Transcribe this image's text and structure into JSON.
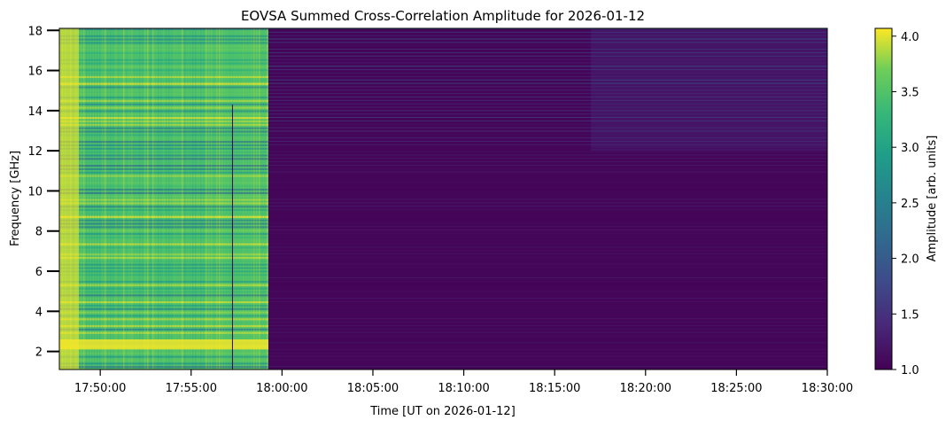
{
  "chart_data": {
    "type": "heatmap",
    "title": "EOVSA Summed Cross-Correlation Amplitude for 2026-01-12",
    "xlabel": "Time [UT on 2026-01-12]",
    "ylabel": "Frequency [GHz]",
    "colorbar_label": "Amplitude [arb. units]",
    "colormap": "viridis",
    "colors": {
      "viridis_low": "#440154",
      "viridis_mid": "#21918c",
      "viridis_high": "#fde725"
    },
    "xlim": [
      "17:47:45",
      "18:30:00"
    ],
    "ylim": [
      1.1,
      18.1
    ],
    "clim": [
      1.0,
      4.07
    ],
    "x_ticks": [
      "17:50:00",
      "17:55:00",
      "18:00:00",
      "18:05:00",
      "18:10:00",
      "18:15:00",
      "18:20:00",
      "18:25:00",
      "18:30:00"
    ],
    "y_ticks": [
      2,
      4,
      6,
      8,
      10,
      12,
      14,
      16,
      18
    ],
    "colorbar_ticks": [
      1.0,
      1.5,
      2.0,
      2.5,
      3.0,
      3.5,
      4.0
    ],
    "x_tick_labels": [
      "17:50:00",
      "17:55:00",
      "18:00:00",
      "18:05:00",
      "18:10:00",
      "18:15:00",
      "18:20:00",
      "18:25:00",
      "18:30:00"
    ],
    "y_tick_labels": [
      "2",
      "4",
      "6",
      "8",
      "10",
      "12",
      "14",
      "16",
      "18"
    ],
    "colorbar_tick_labels": [
      "1.0",
      "1.5",
      "2.0",
      "2.5",
      "3.0",
      "3.5",
      "4.0"
    ],
    "regions": [
      {
        "t_start": "17:47:45",
        "t_end": "17:59:15",
        "f_start": 1.1,
        "f_end": 18.1,
        "amplitude": 3.5
      },
      {
        "t_start": "17:59:15",
        "t_end": "18:30:00",
        "f_start": 1.1,
        "f_end": 18.1,
        "amplitude": 1.05
      },
      {
        "t_start": "18:17:00",
        "t_end": "18:30:00",
        "f_start": 12.0,
        "f_end": 18.1,
        "amplitude": 1.5
      }
    ],
    "grid": false
  }
}
